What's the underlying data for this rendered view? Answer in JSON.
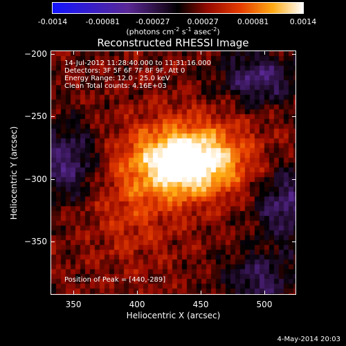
{
  "colorbar": {
    "tick_labels": [
      "-0.0014",
      "-0.00081",
      "-0.00027",
      "0.00027",
      "0.00081",
      "0.0014"
    ],
    "units_prefix": "(photons cm",
    "units_exp1": "-2",
    "units_mid": " s",
    "units_exp2": "-1",
    "units_mid2": " asec",
    "units_exp3": "-2",
    "units_suffix": ")"
  },
  "plot": {
    "title": "Reconstructed RHESSI Image",
    "info_lines": [
      "14-Jul-2012 11:28:40.000 to 11:31:16.000",
      "Detectors: 3F 5F 6F 7F 8F 9F, Att 0",
      "Energy Range: 12.0 - 25.0 keV",
      "Clean     Total counts: 4.16E+03"
    ],
    "peak_text": "Position of Peak = [440,-289]",
    "xlabel": "Heliocentric X (arcsec)",
    "ylabel": "Heliocentric Y (arcsec)",
    "x_ticks": [
      350,
      400,
      450,
      500
    ],
    "y_ticks": [
      -200,
      -250,
      -300,
      -350
    ],
    "xlim": [
      332,
      525
    ],
    "ylim": [
      -393,
      -197
    ],
    "peak": [
      440,
      -289
    ]
  },
  "footer": {
    "date": "4-May-2014 20:03"
  }
}
